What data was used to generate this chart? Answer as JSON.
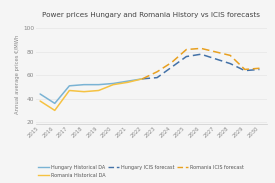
{
  "title": "Power prices Hungary and Romania History vs ICIS forecasts",
  "ylabel": "Annual average prices €/MWh",
  "years_historical": [
    2015,
    2016,
    2017,
    2018,
    2019,
    2020,
    2021,
    2022
  ],
  "years_forecast": [
    2022,
    2023,
    2024,
    2025,
    2026,
    2027,
    2028,
    2029,
    2030
  ],
  "hungary_historical": [
    44,
    36,
    51,
    52,
    52,
    53,
    55,
    57
  ],
  "romania_historical": [
    38,
    30,
    47,
    46,
    47,
    52,
    54,
    57
  ],
  "hungary_forecast": [
    57,
    58,
    67,
    76,
    78,
    74,
    70,
    64,
    65
  ],
  "romania_forecast": [
    57,
    63,
    71,
    82,
    83,
    80,
    77,
    65,
    66
  ],
  "color_hungary_hist": "#7ab3d4",
  "color_romania_hist": "#f5c242",
  "color_hungary_fcst": "#4472a8",
  "color_romania_fcst": "#e8a020",
  "yticks": [
    20,
    40,
    60,
    80,
    100
  ],
  "ylim": [
    18,
    104
  ],
  "xlim_left": 2014.7,
  "xlim_right": 2030.5,
  "background_color": "#f5f5f5",
  "grid_color": "#e8e8e8",
  "tick_color": "#888888",
  "title_color": "#444444",
  "legend_labels": [
    "Hungary Historical DA",
    "Romania Historical DA",
    "Hungary ICIS forecast",
    "Romania ICIS forecast"
  ]
}
